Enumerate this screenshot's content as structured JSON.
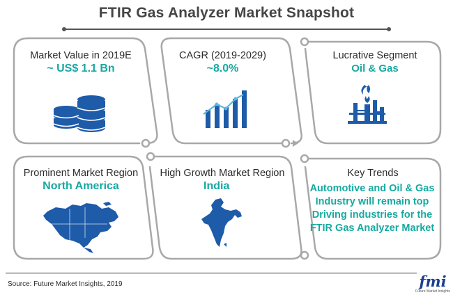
{
  "title": "FTIR Gas Analyzer Market Snapshot",
  "cards": {
    "market_value": {
      "label": "Market Value in 2019E",
      "value": "~ US$ 1.1 Bn",
      "icon": "database-icon"
    },
    "cagr": {
      "label": "CAGR (2019-2029)",
      "value": "~8.0%",
      "icon": "bar-chart-growth-icon"
    },
    "lucrative_segment": {
      "label": "Lucrative Segment",
      "value": "Oil & Gas",
      "icon": "refinery-icon"
    },
    "prominent_region": {
      "label": "Prominent Market Region",
      "value": "North America",
      "icon": "north-america-map-icon"
    },
    "growth_region": {
      "label": "High Growth Market Region",
      "value": "India",
      "icon": "india-map-icon"
    },
    "key_trends": {
      "label": "Key Trends",
      "text": "Automotive and Oil & Gas Industry will remain top Driving industries for the FTIR Gas Analyzer Market"
    }
  },
  "source": "Source: Future Market Insights, 2019",
  "logo": {
    "main": "fmi",
    "sub": "Future Market Insights"
  },
  "colors": {
    "accent": "#16a9a1",
    "icon_blue": "#1e5ba8",
    "frame": "#a8a8a8",
    "title": "#454545"
  }
}
